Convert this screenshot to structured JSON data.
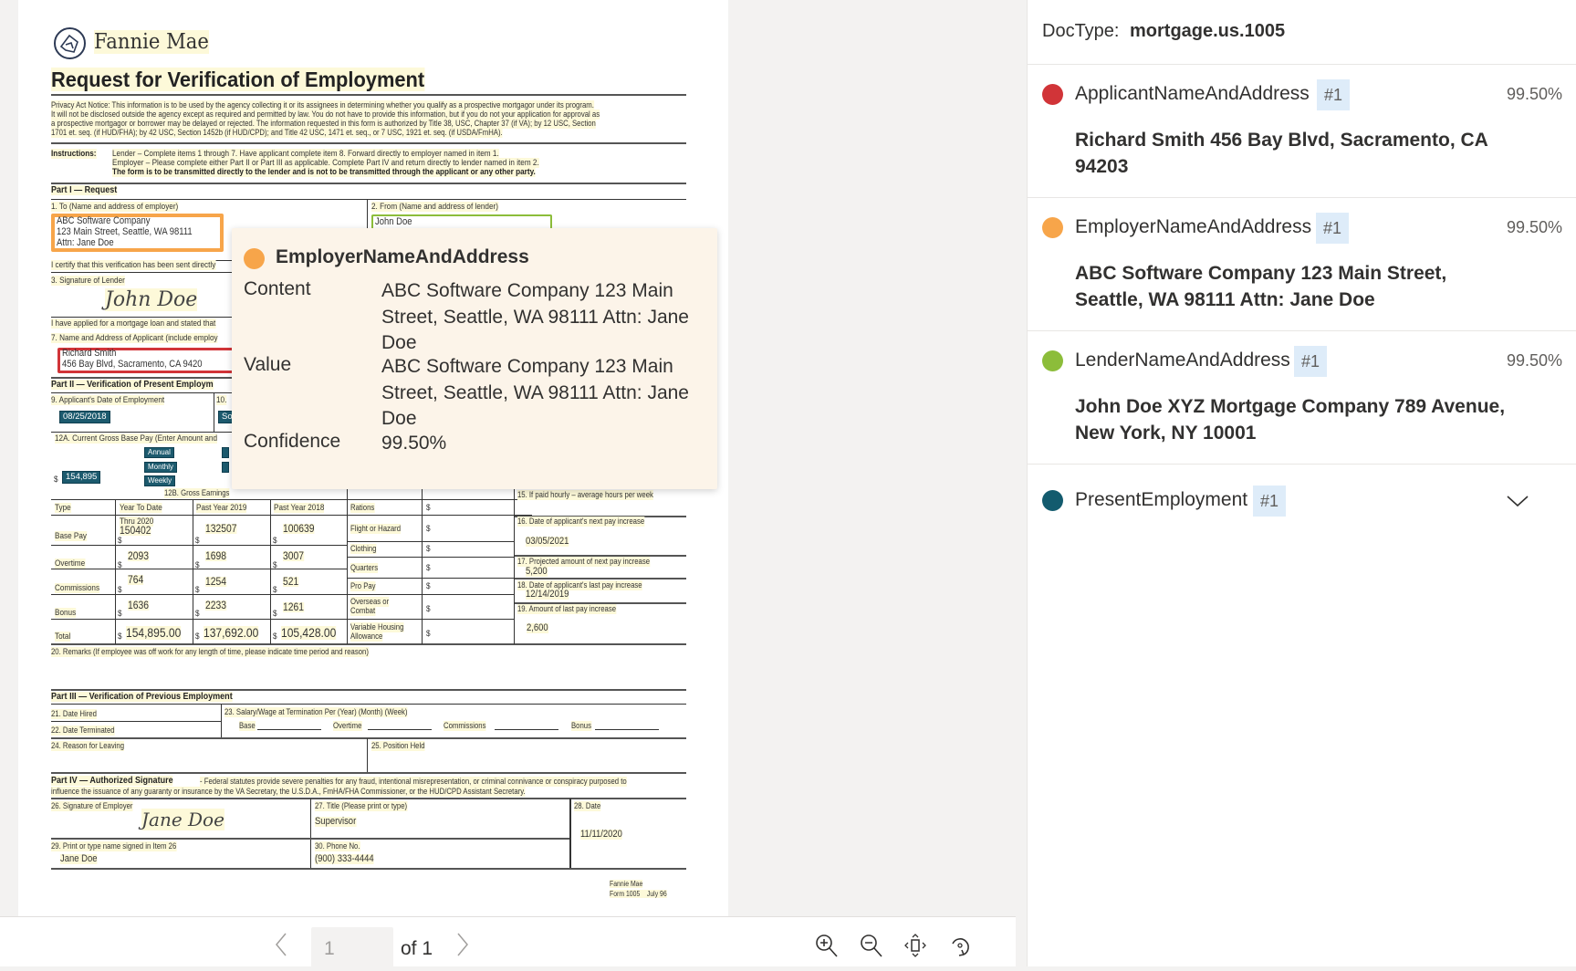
{
  "colors": {
    "applicant": "#d13438",
    "employer": "#f7a54a",
    "lender": "#8cbd3a",
    "present": "#135b6e",
    "badge_bg": "#deecf9",
    "tooltip_bg": "#fcf4e9"
  },
  "document": {
    "logo_text": "Fannie Mae",
    "title": "Request for Verification of Employment",
    "privacy": [
      "Privacy Act Notice: This information is to be used by the agency collecting it or its assignees in determining whether you qualify as a prospective mortgagor under its program.",
      "It will not be disclosed outside the agency except as required and permitted by law. You do not have to provide this information, but if you do not your application for approval as",
      "a prospective mortgagor or borrower may be delayed or rejected. The information requested in this form is authorized by Title 38, USC, Chapter 37 (if VA); by 12 USC, Section",
      "1701 et. seq. (if HUD/FHA); by 42 USC, Section 1452b (if HUD/CPD); and Title 42 USC, 1471 et. seq., or 7 USC, 1921 et. seq. (if USDA/FmHA)."
    ],
    "instructions_label": "Instructions:",
    "instructions": [
      "Lender – Complete items 1 through 7. Have applicant complete item 8. Forward directly to employer named in item 1.",
      "Employer – Please complete either Part II or Part III as applicable. Complete Part IV and return directly to lender named in item 2.",
      "The form is to be transmitted directly to the lender and is not to be transmitted through the applicant or any other party."
    ],
    "part1": "Part I — Request",
    "f1_label": "1. To (Name and address of employer)",
    "f1_lines": [
      "ABC Software Company",
      "123 Main Street, Seattle, WA 98111",
      "Attn: Jane Doe"
    ],
    "f2_label": "2. From (Name and address of lender)",
    "f2_value": "John Doe",
    "certify": "I certify that this verification has been sent directly",
    "f3_label": "3. Signature of Lender",
    "f3_sig": "John Doe",
    "applied": "I have applied for a mortgage loan and stated that",
    "f7_label": "7. Name and Address of Applicant (include employ",
    "f7_lines": [
      "Richard Smith",
      "456 Bay Blvd, Sacramento, CA 9420"
    ],
    "part2": "Part II — Verification of Present Employm",
    "f9_label": "9. Applicant's Date of Employment",
    "f9_value": "08/25/2018",
    "f10_label": "10.",
    "f10_value": "So",
    "f12a_label": "12A. Current Gross Base Pay (Enter Amount and",
    "pay_periods": [
      "Annual",
      "Monthly",
      "Weekly"
    ],
    "f12a_value": "154,895",
    "dollar": "$",
    "f12b_label": "12B. Gross Earnings",
    "table_headers": [
      "Type",
      "Year To Date",
      "Past Year 2019",
      "Past Year 2018"
    ],
    "thru": "Thru 2020",
    "table_rows": [
      {
        "type": "Base Pay",
        "ytd": "150402",
        "y2019": "132507",
        "y2018": "100639"
      },
      {
        "type": "Overtime",
        "ytd": "2093",
        "y2019": "1698",
        "y2018": "3007"
      },
      {
        "type": "Commissions",
        "ytd": "764",
        "y2019": "1254",
        "y2018": "521"
      },
      {
        "type": "Bonus",
        "ytd": "1636",
        "y2019": "2233",
        "y2018": "1261"
      },
      {
        "type": "Total",
        "ytd": "154,895.00",
        "y2019": "137,692.00",
        "y2018": "105,428.00"
      }
    ],
    "allowances": [
      "Rations",
      "Flight or Hazard",
      "Clothing",
      "Quarters",
      "Pro Pay",
      "Overseas or",
      "Combat",
      "Variable Housing",
      "Allowance"
    ],
    "f15_label": "15. If paid hourly – average hours per week",
    "f16_label": "16. Date of applicant's next pay increase",
    "f16_value": "03/05/2021",
    "f17_label": "17. Projected amount of next pay increase",
    "f17_value": "5,200",
    "f18_label": "18. Date of applicant's last pay increase",
    "f18_value": "12/14/2019",
    "f19_label": "19. Amount of last pay increase",
    "f19_value": "2,600",
    "f20_label": "20. Remarks (If employee was off work for any length of time, please indicate time period and reason)",
    "part3": "Part III — Verification of Previous Employment",
    "f21_label": "21. Date Hired",
    "f22_label": "22. Date Terminated",
    "f23_label": "23. Salary/Wage at Termination Per (Year) (Month) (Week)",
    "f23_fields": [
      "Base",
      "Overtime",
      "Commissions",
      "Bonus"
    ],
    "f24_label": "24. Reason for Leaving",
    "f25_label": "25. Position Held",
    "part4_bold": "Part IV — Authorized Signature",
    "part4_text": [
      "- Federal statutes provide severe penalties for any fraud, intentional misrepresentation, or criminal connivance or conspiracy purposed to",
      "influence the issuance of any guaranty or insurance by the VA Secretary, the U.S.D.A., FmHA/FHA Commissioner, or the HUD/CPD Assistant Secretary."
    ],
    "f26_label": "26. Signature of Employer",
    "f26_sig": "Jane Doe",
    "f27_label": "27. Title (Please print or type)",
    "f27_value": "Supervisor",
    "f28_label": "28. Date",
    "f28_value": "11/11/2020",
    "f29_label": "29. Print or type name signed in Item 26",
    "f29_value": "Jane Doe",
    "f30_label": "30. Phone No.",
    "f30_value": "(900) 333-4444",
    "form_footer": [
      "Fannie Mae",
      "Form 1005    July 96"
    ]
  },
  "tooltip": {
    "field": "EmployerNameAndAddress",
    "content_label": "Content",
    "content": "ABC Software Company 123 Main Street, Seattle, WA 98111 Attn: Jane Doe",
    "value_label": "Value",
    "value": "ABC Software Company 123 Main Street, Seattle, WA 98111 Attn: Jane Doe",
    "confidence_label": "Confidence",
    "confidence": "99.50%"
  },
  "pagination": {
    "current_page": "1",
    "of_label": "of 1"
  },
  "toolbar": {
    "icons": [
      "zoom-in-icon",
      "zoom-out-icon",
      "fit-page-icon",
      "rotate-icon"
    ]
  },
  "panel": {
    "doctype_label": "DocType:",
    "doctype": "mortgage.us.1005",
    "fields": [
      {
        "name": "ApplicantNameAndAddress",
        "index": "#1",
        "confidence": "99.50%",
        "value": "Richard Smith 456 Bay Blvd, Sacramento, CA 94203"
      },
      {
        "name": "EmployerNameAndAddress",
        "index": "#1",
        "confidence": "99.50%",
        "value": "ABC Software Company 123 Main Street, Seattle, WA 98111 Attn: Jane Doe"
      },
      {
        "name": "LenderNameAndAddress",
        "index": "#1",
        "confidence": "99.50%",
        "value": "John Doe XYZ Mortgage Company 789 Avenue, New York, NY 10001"
      },
      {
        "name": "PresentEmployment",
        "index": "#1",
        "expanded": false
      }
    ]
  }
}
